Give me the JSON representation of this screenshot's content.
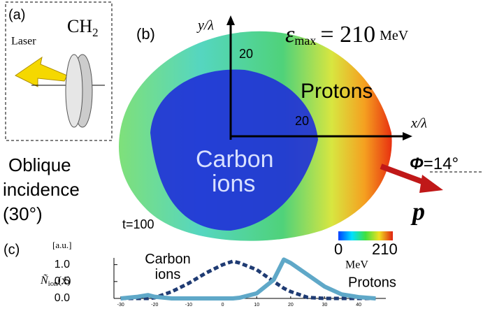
{
  "panel_a": {
    "label": "(a)",
    "material": "CH",
    "material_sub": "2",
    "laser": "Laser"
  },
  "panel_b": {
    "label": "(b)",
    "y_axis": "y/λ",
    "x_axis": "x/λ",
    "y_tick": "20",
    "x_tick": "20",
    "energy_symbol": "ε",
    "energy_sub": "max",
    "energy_value": "= 210",
    "energy_unit": "MeV",
    "protons": "Protons",
    "carbon": "Carbon",
    "carbon_2": "ions",
    "oblique": "Oblique",
    "oblique_2": "incidence",
    "oblique_3": "(30°)",
    "time": "t=100",
    "angle_symbol": "Φ",
    "angle_value": "=14°",
    "momentum": "p",
    "colorbar": {
      "min": "0",
      "max": "210",
      "unit": "MeV"
    }
  },
  "chart_data": {
    "type": "line",
    "panel_label": "(c)",
    "unit": "[a.u.]",
    "ylabel": "Ñ",
    "ylabel_sub": "ion",
    "ylabel_suffix": "(x)",
    "x": [
      -30,
      -25,
      -22,
      -20,
      -15,
      -10,
      -5,
      0,
      3,
      5,
      10,
      15,
      18,
      20,
      25,
      30,
      35,
      40,
      45
    ],
    "series": [
      {
        "name": "Carbon ions",
        "color": "#1f3b73",
        "dash": true,
        "values": [
          0,
          0,
          0,
          0.02,
          0.2,
          0.45,
          0.75,
          1.0,
          1.1,
          1.05,
          0.85,
          0.5,
          0.3,
          0.2,
          0.03,
          0,
          0,
          0,
          0
        ]
      },
      {
        "name": "Protons",
        "color": "#5fa8c8",
        "dash": false,
        "values": [
          0,
          0.05,
          0.1,
          0.05,
          0,
          0,
          0,
          0,
          0,
          0.02,
          0.15,
          0.55,
          1.15,
          1.05,
          0.7,
          0.35,
          0.12,
          0.04,
          0
        ]
      }
    ],
    "xlim": [
      -32,
      48
    ],
    "ylim": [
      0,
      1.2
    ],
    "xticks": [
      -30,
      -20,
      -10,
      0,
      10,
      20,
      30,
      40
    ],
    "yticks": [
      {
        "value": 0,
        "label": "0.0"
      },
      {
        "value": 0.5,
        "label": "0.5"
      },
      {
        "value": 1,
        "label": "1.0"
      }
    ]
  }
}
